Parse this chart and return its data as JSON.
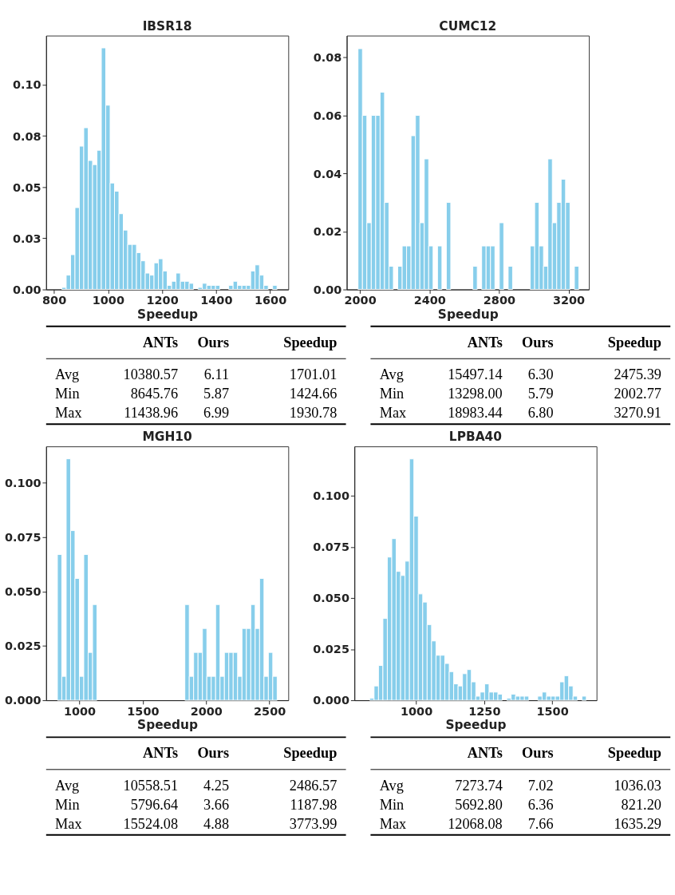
{
  "chart_data": [
    {
      "type": "histogram",
      "title": "IBSR18",
      "xlabel": "Speedup",
      "color": "#87ceeb",
      "bins": [
        829,
        845.25,
        861.5,
        877.75,
        894,
        910.25,
        926.5,
        942.75,
        959,
        975.25,
        991.5,
        1007.75,
        1024,
        1040.25,
        1056.5,
        1072.75,
        1089,
        1105.25,
        1121.5,
        1137.75,
        1154,
        1170.25,
        1186.5,
        1202.75,
        1219,
        1235.25,
        1251.5,
        1267.75,
        1284,
        1300.25,
        1316.5,
        1332.75,
        1349,
        1365.25,
        1381.5,
        1397.75,
        1414,
        1430.25,
        1446.5,
        1462.75,
        1479,
        1495.25,
        1511.5,
        1527.75,
        1544,
        1560.25,
        1576.5,
        1592.75,
        1609,
        1625.25
      ],
      "values": [
        0.001,
        0.007,
        0.017,
        0.04,
        0.07,
        0.079,
        0.063,
        0.061,
        0.068,
        0.118,
        0.09,
        0.052,
        0.048,
        0.037,
        0.029,
        0.022,
        0.022,
        0.018,
        0.014,
        0.008,
        0.007,
        0.013,
        0.015,
        0.009,
        0.002,
        0.004,
        0.008,
        0.004,
        0.004,
        0.003,
        0,
        0.001,
        0.003,
        0.002,
        0.002,
        0.002,
        0,
        0,
        0.002,
        0.004,
        0.002,
        0.002,
        0.002,
        0.009,
        0.012,
        0.007,
        0.002,
        0,
        0.002
      ],
      "xlim": [
        771,
        1667
      ],
      "ylim": [
        0,
        0.124
      ],
      "xticks": [
        800,
        1000,
        1200,
        1400,
        1600
      ],
      "yticks": [
        {
          "value": 0,
          "label": "0.00"
        },
        {
          "value": 0.025,
          "label": "0.03"
        },
        {
          "value": 0.05,
          "label": "0.05"
        },
        {
          "value": 0.075,
          "label": "0.08"
        },
        {
          "value": 0.1,
          "label": "0.10"
        }
      ]
    },
    {
      "type": "histogram",
      "title": "CUMC12",
      "xlabel": "Speedup",
      "color": "#87ceeb",
      "bins": [
        1989,
        2014.4,
        2039.8,
        2065.2,
        2090.6,
        2116,
        2141.4,
        2166.8,
        2192.2,
        2217.6,
        2243,
        2268.4,
        2293.8,
        2319.2,
        2344.6,
        2370,
        2395.4,
        2420.8,
        2446.2,
        2471.6,
        2497,
        2522.4,
        2547.8,
        2573.2,
        2598.6,
        2624,
        2649.4,
        2674.8,
        2700.2,
        2725.6,
        2751,
        2776.4,
        2801.8,
        2827.2,
        2852.6,
        2878,
        2903.4,
        2928.8,
        2954.2,
        2979.6,
        3005,
        3030.4,
        3055.8,
        3081.2,
        3106.6,
        3132,
        3157.4,
        3182.8,
        3208.2,
        3233.6,
        3259
      ],
      "values": [
        0.083,
        0.06,
        0.023,
        0.06,
        0.06,
        0.068,
        0.03,
        0.008,
        0,
        0.008,
        0.015,
        0.015,
        0.053,
        0.06,
        0.023,
        0.045,
        0.015,
        0,
        0.015,
        0,
        0.03,
        0,
        0,
        0,
        0,
        0,
        0.008,
        0,
        0.015,
        0.015,
        0.015,
        0,
        0.023,
        0,
        0.008,
        0,
        0,
        0,
        0,
        0.015,
        0.03,
        0.015,
        0.008,
        0.045,
        0.023,
        0.03,
        0.038,
        0.03,
        0,
        0.008
      ],
      "xlim": [
        1924,
        3317
      ],
      "ylim": [
        0,
        0.0875
      ],
      "xticks": [
        2000,
        2400,
        2800,
        3200
      ],
      "yticks": [
        {
          "value": 0,
          "label": "0.00"
        },
        {
          "value": 0.02,
          "label": "0.02"
        },
        {
          "value": 0.04,
          "label": "0.04"
        },
        {
          "value": 0.06,
          "label": "0.06"
        },
        {
          "value": 0.08,
          "label": "0.08"
        }
      ]
    },
    {
      "type": "other",
      "categories": [
        "ANTs",
        "Ours",
        "Speedup"
      ],
      "y_categories": [
        "Avg",
        "Min",
        "Max"
      ],
      "cell_labels": [
        [
          "10380.57",
          "6.11",
          "1701.01"
        ],
        [
          "8645.76",
          "5.87",
          "1424.66"
        ],
        [
          "11438.96",
          "6.99",
          "1930.78"
        ]
      ]
    },
    {
      "type": "other",
      "categories": [
        "ANTs",
        "Ours",
        "Speedup"
      ],
      "y_categories": [
        "Avg",
        "Min",
        "Max"
      ],
      "cell_labels": [
        [
          "15497.14",
          "6.30",
          "2475.39"
        ],
        [
          "13298.00",
          "5.79",
          "2002.77"
        ],
        [
          "18983.44",
          "6.80",
          "3270.91"
        ]
      ]
    },
    {
      "type": "histogram",
      "title": "MGH10",
      "xlabel": "Speedup",
      "color": "#87ceeb",
      "bins": [
        826,
        860.7,
        895.4,
        930.1,
        964.8,
        999.5,
        1034.2,
        1068.9,
        1103.6,
        1138.3,
        1173,
        1207.7,
        1242.4,
        1277.1,
        1311.8,
        1346.5,
        1381.2,
        1415.9,
        1450.6,
        1485.3,
        1520,
        1554.7,
        1589.4,
        1624.1,
        1658.8,
        1693.5,
        1728.2,
        1762.9,
        1797.6,
        1832.3,
        1867,
        1901.7,
        1936.4,
        1971.1,
        2005.8,
        2040.5,
        2075.2,
        2109.9,
        2144.6,
        2179.3,
        2214,
        2248.7,
        2283.4,
        2318.1,
        2352.8,
        2387.5,
        2422.2,
        2456.9,
        2491.6,
        2526.3,
        2561
      ],
      "values": [
        0.067,
        0.011,
        0.111,
        0.078,
        0.056,
        0.011,
        0.067,
        0.022,
        0.044,
        0,
        0,
        0,
        0,
        0,
        0,
        0,
        0,
        0,
        0,
        0,
        0,
        0,
        0,
        0,
        0,
        0,
        0,
        0,
        0,
        0.044,
        0.011,
        0.022,
        0.022,
        0.033,
        0.011,
        0.011,
        0.044,
        0.011,
        0.022,
        0.022,
        0.022,
        0.011,
        0.033,
        0.033,
        0.044,
        0.033,
        0.056,
        0.011,
        0.022,
        0.011
      ],
      "xlim": [
        737,
        2649
      ],
      "ylim": [
        0,
        0.1167
      ],
      "xticks": [
        1000,
        1500,
        2000,
        2500
      ],
      "yticks": [
        {
          "value": 0,
          "label": "0.000"
        },
        {
          "value": 0.025,
          "label": "0.025"
        },
        {
          "value": 0.05,
          "label": "0.050"
        },
        {
          "value": 0.075,
          "label": "0.075"
        },
        {
          "value": 0.1,
          "label": "0.100"
        }
      ]
    },
    {
      "type": "histogram",
      "title": "LPBA40",
      "xlabel": "Speedup",
      "color": "#87ceeb",
      "bins": [
        829,
        845.25,
        861.5,
        877.75,
        894,
        910.25,
        926.5,
        942.75,
        959,
        975.25,
        991.5,
        1007.75,
        1024,
        1040.25,
        1056.5,
        1072.75,
        1089,
        1105.25,
        1121.5,
        1137.75,
        1154,
        1170.25,
        1186.5,
        1202.75,
        1219,
        1235.25,
        1251.5,
        1267.75,
        1284,
        1300.25,
        1316.5,
        1332.75,
        1349,
        1365.25,
        1381.5,
        1397.75,
        1414,
        1430.25,
        1446.5,
        1462.75,
        1479,
        1495.25,
        1511.5,
        1527.75,
        1544,
        1560.25,
        1576.5,
        1592.75,
        1609,
        1625.25
      ],
      "values": [
        0.001,
        0.007,
        0.017,
        0.04,
        0.07,
        0.079,
        0.063,
        0.061,
        0.068,
        0.118,
        0.09,
        0.052,
        0.048,
        0.037,
        0.029,
        0.022,
        0.022,
        0.018,
        0.014,
        0.008,
        0.007,
        0.013,
        0.015,
        0.009,
        0.002,
        0.004,
        0.008,
        0.004,
        0.004,
        0.003,
        0,
        0.001,
        0.003,
        0.002,
        0.002,
        0.002,
        0,
        0,
        0.002,
        0.004,
        0.002,
        0.002,
        0.002,
        0.009,
        0.012,
        0.007,
        0.002,
        0,
        0.002
      ],
      "xlim": [
        773,
        1663
      ],
      "ylim": [
        0,
        0.1241
      ],
      "xticks": [
        1000,
        1250,
        1500
      ],
      "yticks": [
        {
          "value": 0,
          "label": "0.000"
        },
        {
          "value": 0.025,
          "label": "0.025"
        },
        {
          "value": 0.05,
          "label": "0.050"
        },
        {
          "value": 0.075,
          "label": "0.075"
        },
        {
          "value": 0.1,
          "label": "0.100"
        }
      ]
    },
    {
      "type": "other",
      "categories": [
        "ANTs",
        "Ours",
        "Speedup"
      ],
      "y_categories": [
        "Avg",
        "Min",
        "Max"
      ],
      "cell_labels": [
        [
          "10558.51",
          "4.25",
          "2486.57"
        ],
        [
          "5796.64",
          "3.66",
          "1187.98"
        ],
        [
          "15524.08",
          "4.88",
          "3773.99"
        ]
      ]
    },
    {
      "type": "other",
      "categories": [
        "ANTs",
        "Ours",
        "Speedup"
      ],
      "y_categories": [
        "Avg",
        "Min",
        "Max"
      ],
      "cell_labels": [
        [
          "7273.74",
          "7.02",
          "1036.03"
        ],
        [
          "5692.80",
          "6.36",
          "821.20"
        ],
        [
          "12068.08",
          "7.66",
          "1635.29"
        ]
      ]
    }
  ]
}
